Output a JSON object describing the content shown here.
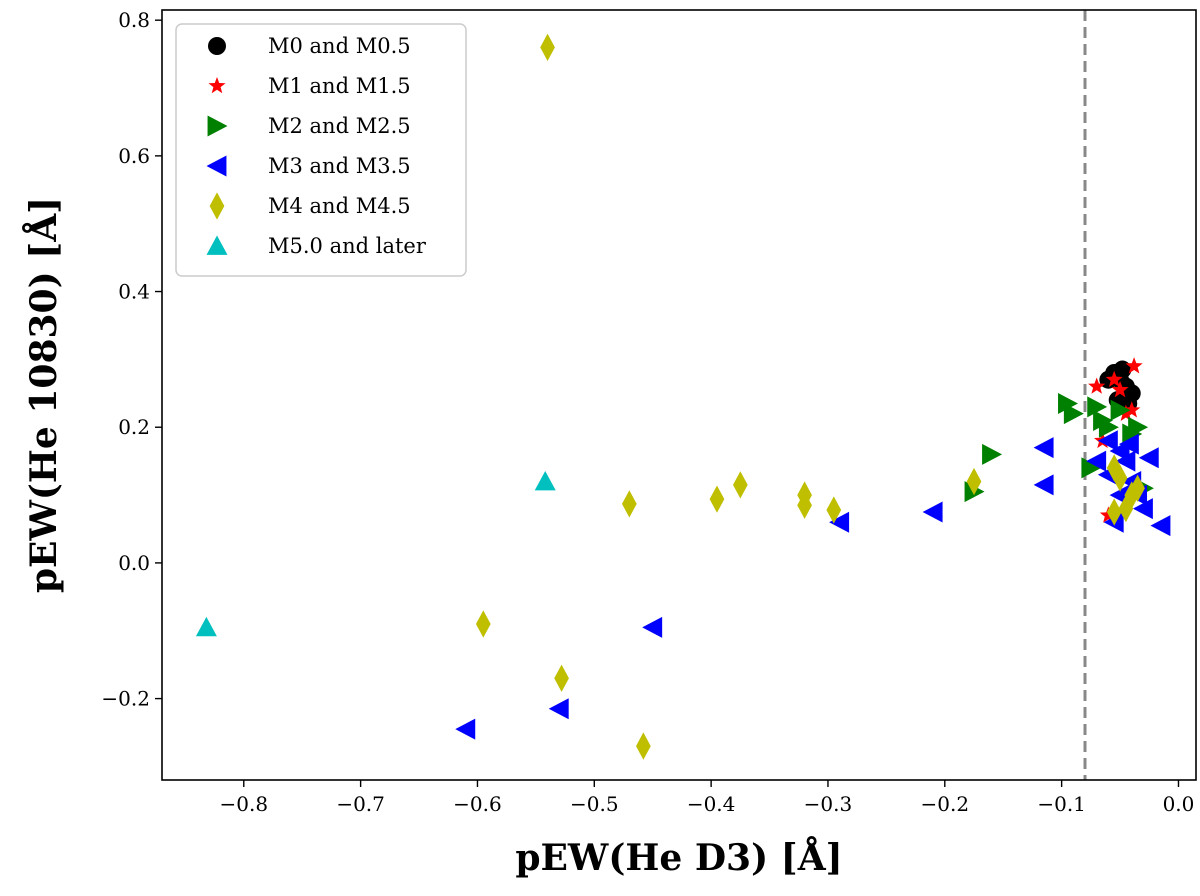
{
  "chart_data": {
    "type": "scatter",
    "title": "",
    "xlabel": "pEW(He D3) [Å]",
    "ylabel": "pEW(He 10830) [Å]",
    "xlim": [
      -0.87,
      0.015
    ],
    "ylim": [
      -0.32,
      0.815
    ],
    "xticks": [
      -0.8,
      -0.7,
      -0.6,
      -0.5,
      -0.4,
      -0.3,
      -0.2,
      -0.1,
      0.0
    ],
    "xtick_labels": [
      "−0.8",
      "−0.7",
      "−0.6",
      "−0.5",
      "−0.4",
      "−0.3",
      "−0.2",
      "−0.1",
      "0.0"
    ],
    "yticks": [
      -0.2,
      0.0,
      0.2,
      0.4,
      0.6,
      0.8
    ],
    "ytick_labels": [
      "−0.2",
      "0.0",
      "0.2",
      "0.4",
      "0.6",
      "0.8"
    ],
    "grid": false,
    "legend_position": "top-left",
    "vline": {
      "x": -0.08,
      "style": "dashed",
      "color": "#888888"
    },
    "series": [
      {
        "name": "M0 and M0.5",
        "marker": "circle",
        "color": "#000000",
        "points": [
          [
            -0.055,
            0.28
          ],
          [
            -0.05,
            0.27
          ],
          [
            -0.045,
            0.26
          ],
          [
            -0.04,
            0.25
          ],
          [
            -0.06,
            0.27
          ],
          [
            -0.048,
            0.285
          ],
          [
            -0.052,
            0.24
          ],
          [
            -0.043,
            0.235
          ]
        ]
      },
      {
        "name": "M1 and M1.5",
        "marker": "star",
        "color": "#ff0000",
        "points": [
          [
            -0.038,
            0.29
          ],
          [
            -0.07,
            0.26
          ],
          [
            -0.055,
            0.27
          ],
          [
            -0.065,
            0.18
          ],
          [
            -0.045,
            0.22
          ],
          [
            -0.06,
            0.07
          ],
          [
            -0.04,
            0.225
          ],
          [
            -0.05,
            0.255
          ]
        ]
      },
      {
        "name": "M2 and M2.5",
        "marker": "triangle-right",
        "color": "#008000",
        "points": [
          [
            -0.095,
            0.235
          ],
          [
            -0.09,
            0.22
          ],
          [
            -0.07,
            0.23
          ],
          [
            -0.065,
            0.21
          ],
          [
            -0.05,
            0.225
          ],
          [
            -0.04,
            0.19
          ],
          [
            -0.035,
            0.2
          ],
          [
            -0.16,
            0.16
          ],
          [
            -0.175,
            0.105
          ],
          [
            -0.075,
            0.14
          ],
          [
            -0.06,
            0.2
          ],
          [
            -0.03,
            0.11
          ]
        ]
      },
      {
        "name": "M3 and M3.5",
        "marker": "triangle-left",
        "color": "#0000ff",
        "points": [
          [
            -0.115,
            0.17
          ],
          [
            -0.115,
            0.115
          ],
          [
            -0.07,
            0.15
          ],
          [
            -0.06,
            0.18
          ],
          [
            -0.05,
            0.165
          ],
          [
            -0.045,
            0.15
          ],
          [
            -0.04,
            0.12
          ],
          [
            -0.035,
            0.1
          ],
          [
            -0.025,
            0.155
          ],
          [
            -0.015,
            0.055
          ],
          [
            -0.055,
            0.06
          ],
          [
            -0.06,
            0.13
          ],
          [
            -0.03,
            0.08
          ],
          [
            -0.21,
            0.075
          ],
          [
            -0.29,
            0.06
          ],
          [
            -0.45,
            -0.095
          ],
          [
            -0.53,
            -0.215
          ],
          [
            -0.61,
            -0.245
          ],
          [
            -0.042,
            0.175
          ],
          [
            -0.05,
            0.1
          ]
        ]
      },
      {
        "name": "M4 and M4.5",
        "marker": "diamond",
        "color": "#bfbf00",
        "points": [
          [
            -0.54,
            0.76
          ],
          [
            -0.47,
            0.087
          ],
          [
            -0.395,
            0.094
          ],
          [
            -0.375,
            0.115
          ],
          [
            -0.32,
            0.1
          ],
          [
            -0.32,
            0.085
          ],
          [
            -0.295,
            0.078
          ],
          [
            -0.175,
            0.12
          ],
          [
            -0.595,
            -0.09
          ],
          [
            -0.528,
            -0.17
          ],
          [
            -0.458,
            -0.27
          ],
          [
            -0.055,
            0.14
          ],
          [
            -0.05,
            0.125
          ],
          [
            -0.04,
            0.1
          ],
          [
            -0.055,
            0.075
          ],
          [
            -0.045,
            0.08
          ],
          [
            -0.035,
            0.11
          ]
        ]
      },
      {
        "name": "M5.0 and later",
        "marker": "triangle-up",
        "color": "#00bfbf",
        "points": [
          [
            -0.542,
            0.12
          ],
          [
            -0.832,
            -0.095
          ]
        ]
      }
    ]
  }
}
